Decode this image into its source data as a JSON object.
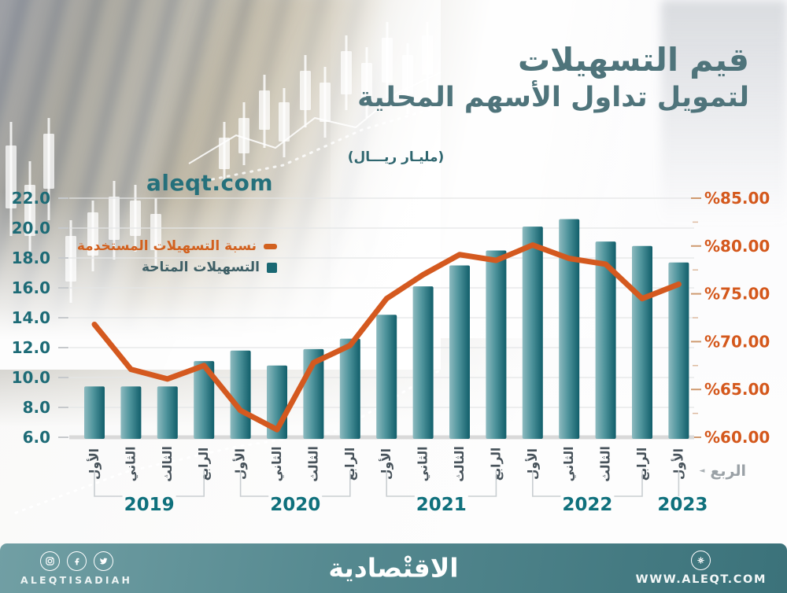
{
  "header": {
    "watermark": "aleqt.com",
    "title_line1": "قيم التسهيلات",
    "title_line2": "لتمويل تداول الأسهم المحلية",
    "unit_label": "(مليـار ريـــال)"
  },
  "legend": {
    "items": [
      {
        "label": "نسبة التسهيلات المستخدمة",
        "color": "#d2611f",
        "marker": "dash"
      },
      {
        "label": "التسهيلات المتاحة",
        "color": "#1a6873",
        "marker": "square"
      }
    ]
  },
  "axis_note": {
    "label": "الربع",
    "arrow": "◄"
  },
  "chart_data": {
    "type": "bar+line",
    "title": "قيم التسهيلات لتمويل تداول الأسهم المحلية",
    "unit": "مليار ريال",
    "categories": [
      "الأول",
      "الثاني",
      "الثالث",
      "الرابع",
      "الأول",
      "الثاني",
      "الثالث",
      "الرابع",
      "الأول",
      "الثاني",
      "الثالث",
      "الرابع",
      "الأول",
      "الثاني",
      "الثالث",
      "الرابع",
      "الأول"
    ],
    "year_groups": [
      {
        "year": "2019",
        "count": 4
      },
      {
        "year": "2020",
        "count": 4
      },
      {
        "year": "2021",
        "count": 4
      },
      {
        "year": "2022",
        "count": 4
      },
      {
        "year": "2023",
        "count": 1
      }
    ],
    "series": [
      {
        "name": "التسهيلات المتاحة",
        "type": "bar",
        "axis": "left",
        "values": [
          9.4,
          9.4,
          9.4,
          11.1,
          11.8,
          10.8,
          11.9,
          12.6,
          14.2,
          16.1,
          17.5,
          18.5,
          20.1,
          20.6,
          19.1,
          18.8,
          17.7
        ]
      },
      {
        "name": "نسبة التسهيلات المستخدمة",
        "type": "line",
        "axis": "right",
        "values": [
          71.8,
          67.1,
          66.1,
          67.5,
          62.8,
          60.8,
          67.8,
          69.6,
          74.5,
          77.0,
          79.1,
          78.5,
          80.1,
          78.7,
          78.1,
          74.5,
          76.0
        ]
      }
    ],
    "left_axis": {
      "min": 6,
      "max": 22,
      "tick_values": [
        6,
        8,
        10,
        12,
        14,
        16,
        18,
        20,
        22
      ],
      "tick_labels": [
        "6.0",
        "8.0",
        "10.0",
        "12.0",
        "14.0",
        "16.0",
        "18.0",
        "20.0",
        "22.0"
      ]
    },
    "right_axis": {
      "min": 60,
      "max": 85,
      "tick_values": [
        60,
        65,
        70,
        75,
        80,
        85
      ],
      "tick_labels": [
        "%60.00",
        "%65.00",
        "%70.00",
        "%75.00",
        "%80.00",
        "%85.00"
      ]
    },
    "grid": true,
    "legend_position": "middle-left"
  },
  "footer": {
    "social_handle": "ALEQTISADIAH",
    "website": "WWW.ALEQT.COM",
    "logo_text": "الاقتْصادية"
  },
  "colors": {
    "bar_light": "#8dbabf",
    "bar_mid": "#4f949c",
    "bar_dark": "#115e6a",
    "line": "#d4591f",
    "left_axis_text": "#1d6b76",
    "right_axis_text": "#d4581c",
    "quarter_text": "#47525a",
    "year_text": "#0f707c",
    "grid": "#e4e5e6",
    "baseline": "#d9d9d9",
    "bracket": "#c9ced1"
  }
}
